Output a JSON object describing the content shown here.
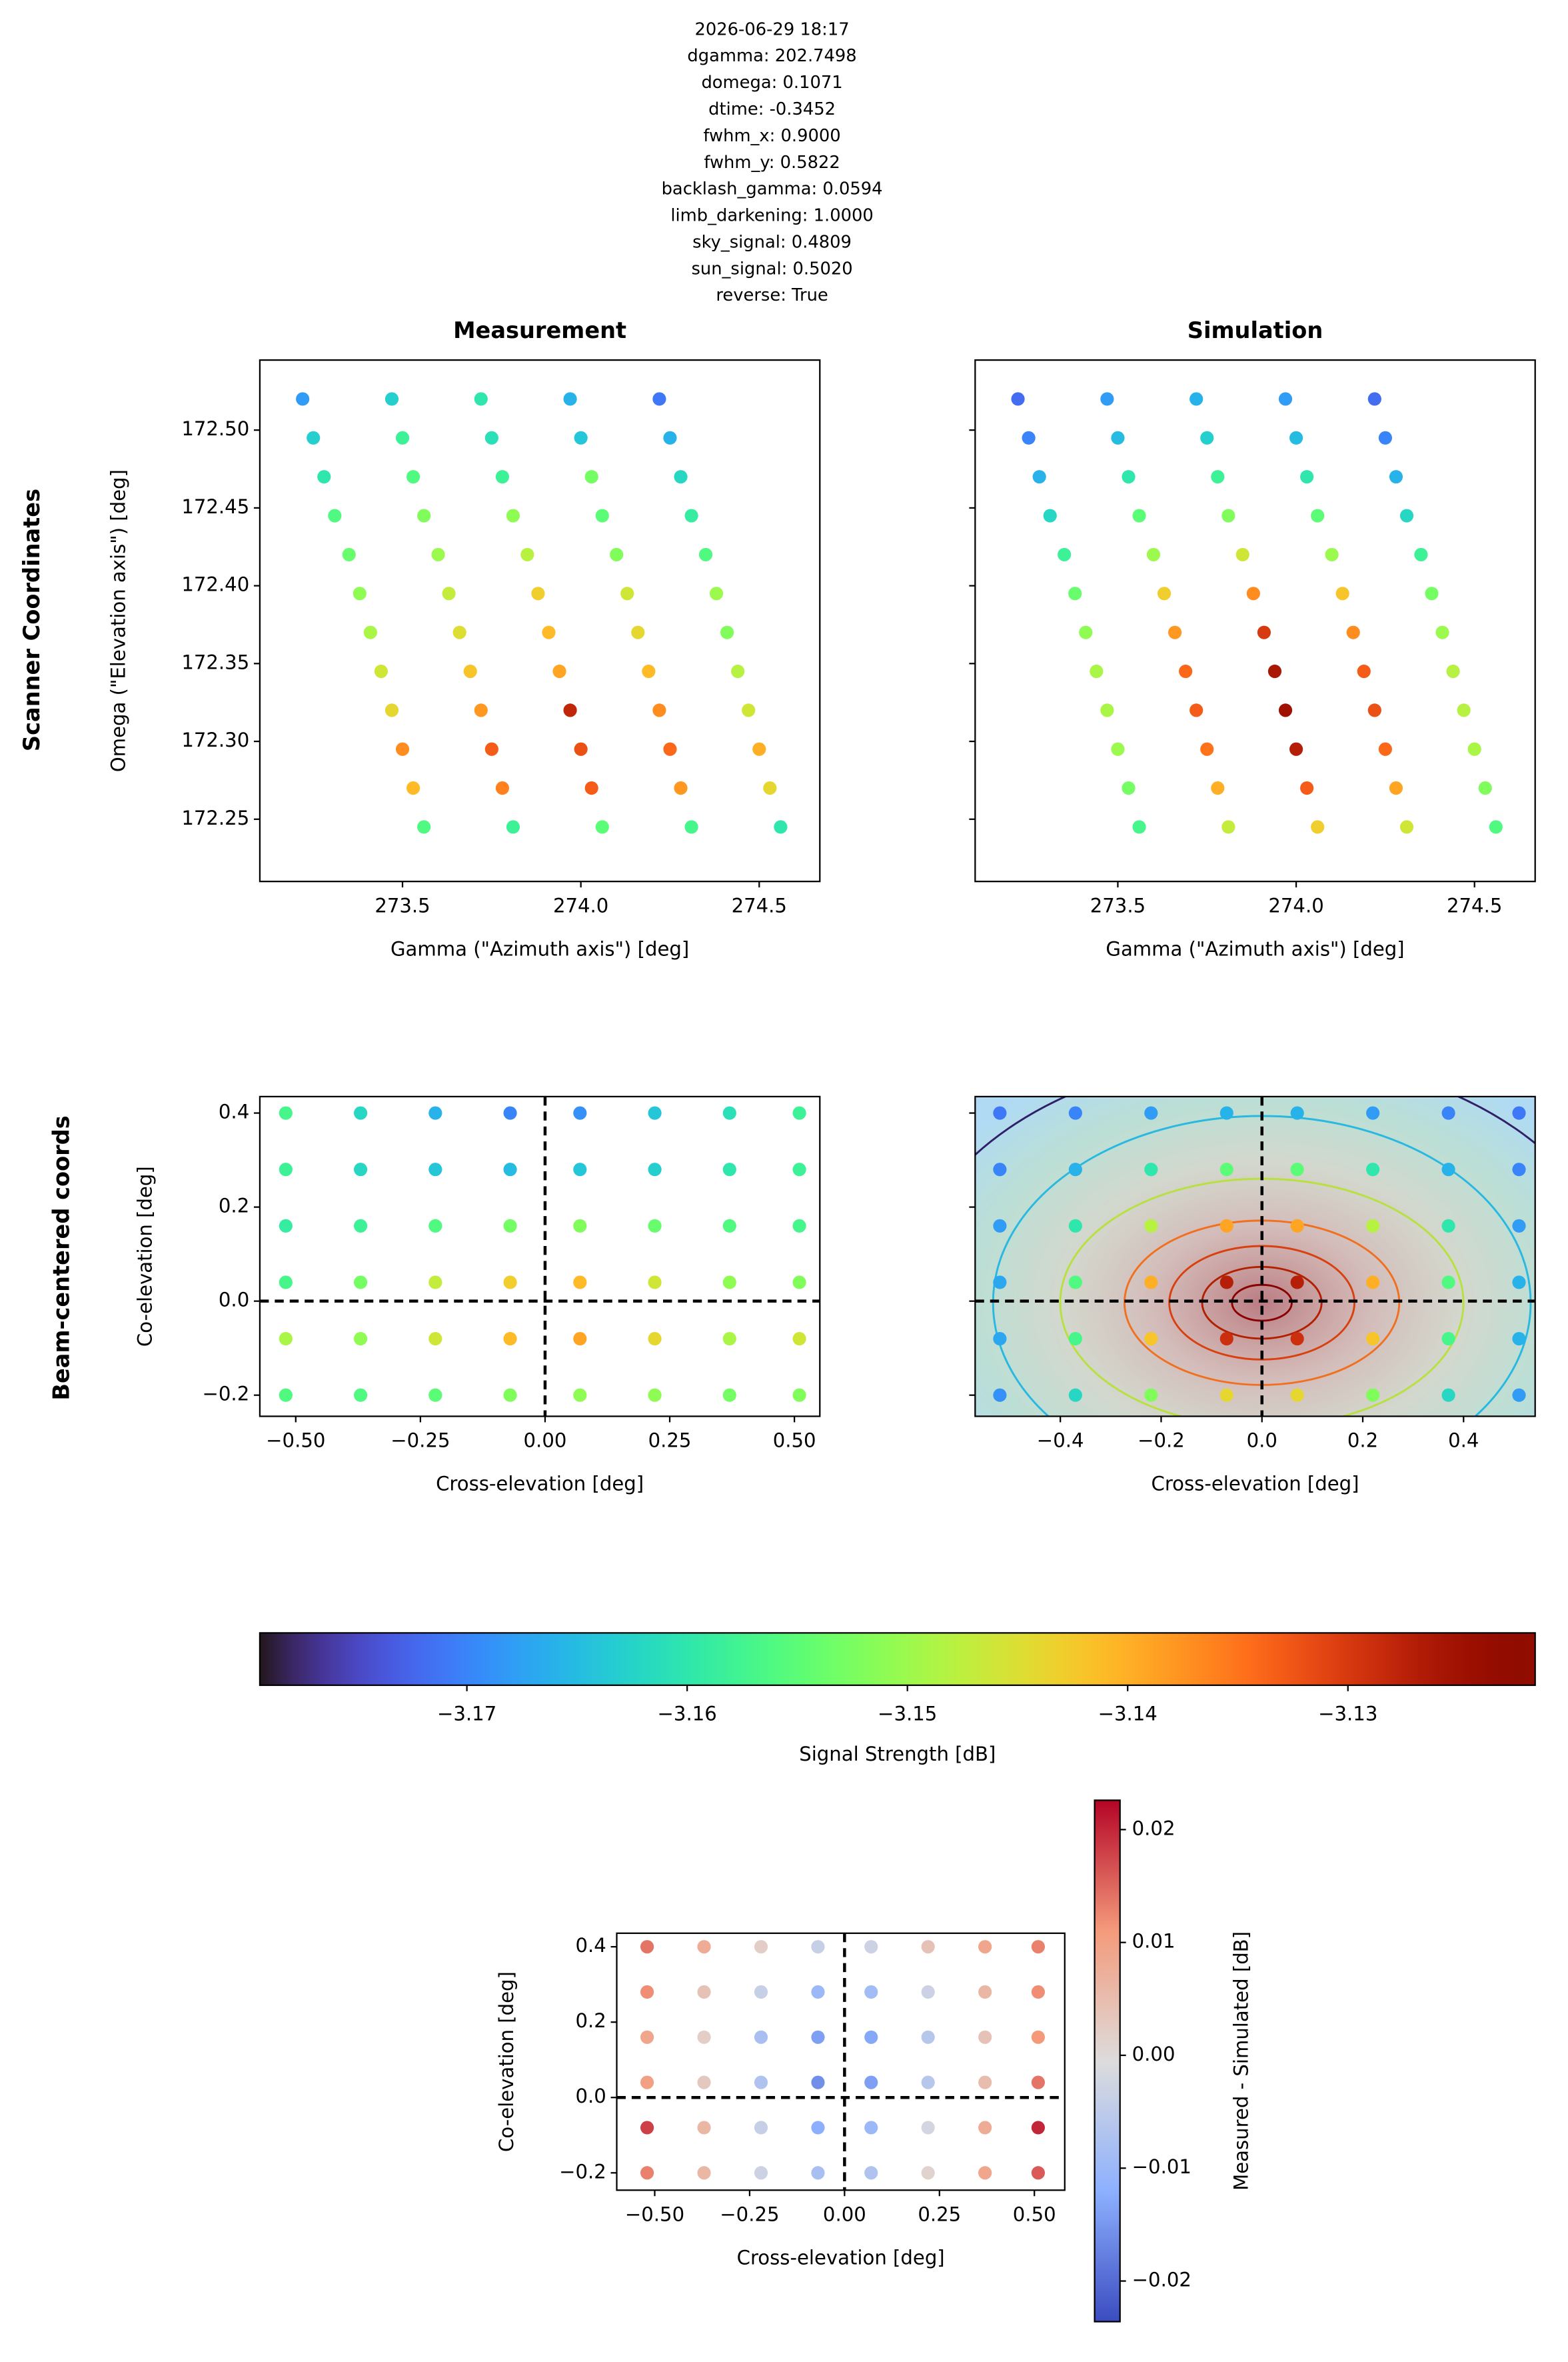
{
  "header_lines": [
    "2026-06-29 18:17",
    "dgamma: 202.7498",
    "domega: 0.1071",
    "dtime: -0.3452",
    "fwhm_x: 0.9000",
    "fwhm_y: 0.5822",
    "backlash_gamma: 0.0594",
    "limb_darkening: 1.0000",
    "sky_signal: 0.4809",
    "sun_signal: 0.5020",
    "reverse: True"
  ],
  "row_labels": [
    "Scanner Coordinates",
    "Beam-centered coords"
  ],
  "chart_data": [
    {
      "type": "scatter",
      "title": "Measurement",
      "xlabel": "Gamma (\"Azimuth axis\") [deg]",
      "ylabel": "Omega (\"Elevation axis\") [deg]",
      "colormap": "turbo",
      "xlim": [
        273.1,
        274.67
      ],
      "ylim": [
        172.21,
        172.545
      ],
      "xticks": [
        273.5,
        {
          "value": 274,
          "label": "274.0"
        },
        274.5
      ],
      "yticks": [
        172.25,
        {
          "value": 172.3,
          "label": "172.30"
        },
        172.35,
        {
          "value": 172.4,
          "label": "172.40"
        },
        172.45,
        {
          "value": 172.5,
          "label": "172.50"
        }
      ],
      "x": [
        273.22,
        273.47,
        273.72,
        273.97,
        274.22,
        273.25,
        273.5,
        273.75,
        274.0,
        274.25,
        273.28,
        273.53,
        273.78,
        274.03,
        274.28,
        273.31,
        273.56,
        273.81,
        274.06,
        274.31,
        273.35,
        273.6,
        273.85,
        274.1,
        274.35,
        273.38,
        273.63,
        273.88,
        274.13,
        274.38,
        273.41,
        273.66,
        273.91,
        274.16,
        274.41,
        273.44,
        273.69,
        273.94,
        274.19,
        274.44,
        273.47,
        273.72,
        273.97,
        274.22,
        274.47,
        273.5,
        273.75,
        274.0,
        274.25,
        274.5,
        273.53,
        273.78,
        274.03,
        274.28,
        274.53,
        273.56,
        273.81,
        274.06,
        274.31,
        274.56
      ],
      "y": [
        172.52,
        172.52,
        172.52,
        172.52,
        172.52,
        172.495,
        172.495,
        172.495,
        172.495,
        172.495,
        172.47,
        172.47,
        172.47,
        172.47,
        172.47,
        172.445,
        172.445,
        172.445,
        172.445,
        172.445,
        172.42,
        172.42,
        172.42,
        172.42,
        172.42,
        172.395,
        172.395,
        172.395,
        172.395,
        172.395,
        172.37,
        172.37,
        172.37,
        172.37,
        172.37,
        172.345,
        172.345,
        172.345,
        172.345,
        172.345,
        172.32,
        172.32,
        172.32,
        172.32,
        172.32,
        172.295,
        172.295,
        172.295,
        172.295,
        172.295,
        172.27,
        172.27,
        172.27,
        172.27,
        172.27,
        172.245,
        172.245,
        172.245,
        172.245,
        172.245
      ],
      "values": [
        -3.168,
        -3.163,
        -3.16,
        -3.166,
        -3.171,
        -3.163,
        -3.158,
        -3.161,
        -3.164,
        -3.166,
        -3.16,
        -3.156,
        -3.158,
        -3.153,
        -3.162,
        -3.156,
        -3.152,
        -3.151,
        -3.155,
        -3.159,
        -3.154,
        -3.15,
        -3.148,
        -3.152,
        -3.156,
        -3.151,
        -3.147,
        -3.143,
        -3.146,
        -3.15,
        -3.149,
        -3.145,
        -3.141,
        -3.144,
        -3.152,
        -3.146,
        -3.142,
        -3.139,
        -3.141,
        -3.148,
        -3.144,
        -3.138,
        -3.128,
        -3.137,
        -3.146,
        -3.137,
        -3.133,
        -3.132,
        -3.134,
        -3.14,
        -3.141,
        -3.136,
        -3.133,
        -3.138,
        -3.144,
        -3.156,
        -3.158,
        -3.155,
        -3.157,
        -3.16
      ]
    },
    {
      "type": "scatter",
      "title": "Simulation",
      "xlabel": "Gamma (\"Azimuth axis\") [deg]",
      "colormap": "turbo",
      "ytick_labels": false,
      "xlim": [
        273.1,
        274.67
      ],
      "ylim": [
        172.21,
        172.545
      ],
      "xticks": [
        273.5,
        {
          "value": 274,
          "label": "274.0"
        },
        274.5
      ],
      "yticks": [
        172.25,
        172.3,
        172.35,
        172.4,
        172.45,
        172.5
      ],
      "x": [
        273.22,
        273.47,
        273.72,
        273.97,
        274.22,
        273.25,
        273.5,
        273.75,
        274.0,
        274.25,
        273.28,
        273.53,
        273.78,
        274.03,
        274.28,
        273.31,
        273.56,
        273.81,
        274.06,
        274.31,
        273.35,
        273.6,
        273.85,
        274.1,
        274.35,
        273.38,
        273.63,
        273.88,
        274.13,
        274.38,
        273.41,
        273.66,
        273.91,
        274.16,
        274.41,
        273.44,
        273.69,
        273.94,
        274.19,
        274.44,
        273.47,
        273.72,
        273.97,
        274.22,
        274.47,
        273.5,
        273.75,
        274.0,
        274.25,
        274.5,
        273.53,
        273.78,
        274.03,
        274.28,
        274.53,
        273.56,
        273.81,
        274.06,
        274.31,
        274.56
      ],
      "y": [
        172.52,
        172.52,
        172.52,
        172.52,
        172.52,
        172.495,
        172.495,
        172.495,
        172.495,
        172.495,
        172.47,
        172.47,
        172.47,
        172.47,
        172.47,
        172.445,
        172.445,
        172.445,
        172.445,
        172.445,
        172.42,
        172.42,
        172.42,
        172.42,
        172.42,
        172.395,
        172.395,
        172.395,
        172.395,
        172.395,
        172.37,
        172.37,
        172.37,
        172.37,
        172.37,
        172.345,
        172.345,
        172.345,
        172.345,
        172.345,
        172.32,
        172.32,
        172.32,
        172.32,
        172.32,
        172.295,
        172.295,
        172.295,
        172.295,
        172.295,
        172.27,
        172.27,
        172.27,
        172.27,
        172.27,
        172.245,
        172.245,
        172.245,
        172.245,
        172.245
      ],
      "values": [
        -3.172,
        -3.168,
        -3.166,
        -3.168,
        -3.172,
        -3.17,
        -3.165,
        -3.163,
        -3.165,
        -3.17,
        -3.166,
        -3.16,
        -3.158,
        -3.16,
        -3.166,
        -3.162,
        -3.155,
        -3.152,
        -3.155,
        -3.162,
        -3.158,
        -3.15,
        -3.146,
        -3.15,
        -3.158,
        -3.154,
        -3.143,
        -3.137,
        -3.142,
        -3.153,
        -3.151,
        -3.138,
        -3.13,
        -3.137,
        -3.15,
        -3.149,
        -3.134,
        -3.126,
        -3.133,
        -3.148,
        -3.149,
        -3.133,
        -3.125,
        -3.132,
        -3.148,
        -3.15,
        -3.135,
        -3.127,
        -3.134,
        -3.149,
        -3.153,
        -3.14,
        -3.133,
        -3.139,
        -3.152,
        -3.157,
        -3.147,
        -3.143,
        -3.146,
        -3.156
      ]
    },
    {
      "type": "scatter",
      "xlabel": "Cross-elevation [deg]",
      "ylabel": "Co-elevation [deg]",
      "colormap": "turbo",
      "reference_lines": {
        "x": 0,
        "y": 0
      },
      "xlim": [
        -0.572,
        0.551
      ],
      "ylim": [
        -0.245,
        0.435
      ],
      "xticks": [
        {
          "value": -0.5,
          "label": "−0.50"
        },
        {
          "value": -0.25,
          "label": "−0.25"
        },
        {
          "value": 0,
          "label": "0.00"
        },
        0.25,
        {
          "value": 0.5,
          "label": "0.50"
        }
      ],
      "yticks": [
        {
          "value": -0.2,
          "label": "−0.2"
        },
        {
          "value": 0,
          "label": "0.0"
        },
        0.2,
        0.4
      ],
      "x": [
        -0.52,
        -0.37,
        -0.22,
        -0.07,
        0.07,
        0.22,
        0.37,
        0.51,
        -0.52,
        -0.37,
        -0.22,
        -0.07,
        0.07,
        0.22,
        0.37,
        0.51,
        -0.52,
        -0.37,
        -0.22,
        -0.07,
        0.07,
        0.22,
        0.37,
        0.51,
        -0.52,
        -0.37,
        -0.22,
        -0.07,
        0.07,
        0.22,
        0.37,
        0.51,
        -0.52,
        -0.37,
        -0.22,
        -0.07,
        0.07,
        0.22,
        0.37,
        0.51,
        -0.52,
        -0.37,
        -0.22,
        -0.07,
        0.07,
        0.22,
        0.37,
        0.51
      ],
      "y": [
        0.4,
        0.4,
        0.4,
        0.4,
        0.4,
        0.4,
        0.4,
        0.4,
        0.28,
        0.28,
        0.28,
        0.28,
        0.28,
        0.28,
        0.28,
        0.28,
        0.16,
        0.16,
        0.16,
        0.16,
        0.16,
        0.16,
        0.16,
        0.16,
        0.04,
        0.04,
        0.04,
        0.04,
        0.04,
        0.04,
        0.04,
        0.04,
        -0.08,
        -0.08,
        -0.08,
        -0.08,
        -0.08,
        -0.08,
        -0.08,
        -0.08,
        -0.2,
        -0.2,
        -0.2,
        -0.2,
        -0.2,
        -0.2,
        -0.2,
        -0.2
      ],
      "values": [
        -3.157,
        -3.162,
        -3.166,
        -3.17,
        -3.169,
        -3.164,
        -3.161,
        -3.158,
        -3.158,
        -3.162,
        -3.164,
        -3.165,
        -3.164,
        -3.163,
        -3.16,
        -3.158,
        -3.159,
        -3.158,
        -3.156,
        -3.153,
        -3.152,
        -3.154,
        -3.156,
        -3.157,
        -3.157,
        -3.153,
        -3.147,
        -3.143,
        -3.141,
        -3.146,
        -3.151,
        -3.152,
        -3.149,
        -3.151,
        -3.146,
        -3.141,
        -3.139,
        -3.144,
        -3.149,
        -3.146,
        -3.156,
        -3.156,
        -3.155,
        -3.152,
        -3.151,
        -3.151,
        -3.153,
        -3.152
      ]
    },
    {
      "type": "scatter",
      "xlabel": "Cross-elevation [deg]",
      "colormap": "turbo",
      "ytick_labels": false,
      "reference_lines": {
        "x": 0,
        "y": 0
      },
      "xlim": [
        -0.569,
        0.542
      ],
      "ylim": [
        -0.245,
        0.435
      ],
      "xticks": [
        {
          "value": -0.4,
          "label": "−0.4"
        },
        {
          "value": -0.2,
          "label": "−0.2"
        },
        {
          "value": 0,
          "label": "0.0"
        },
        0.2,
        0.4
      ],
      "yticks": [
        -0.2,
        0,
        0.2,
        0.4
      ],
      "x": [
        -0.52,
        -0.37,
        -0.22,
        -0.07,
        0.07,
        0.22,
        0.37,
        0.51,
        -0.52,
        -0.37,
        -0.22,
        -0.07,
        0.07,
        0.22,
        0.37,
        0.51,
        -0.52,
        -0.37,
        -0.22,
        -0.07,
        0.07,
        0.22,
        0.37,
        0.51,
        -0.52,
        -0.37,
        -0.22,
        -0.07,
        0.07,
        0.22,
        0.37,
        0.51,
        -0.52,
        -0.37,
        -0.22,
        -0.07,
        0.07,
        0.22,
        0.37,
        0.51,
        -0.52,
        -0.37,
        -0.22,
        -0.07,
        0.07,
        0.22,
        0.37,
        0.51
      ],
      "y": [
        0.4,
        0.4,
        0.4,
        0.4,
        0.4,
        0.4,
        0.4,
        0.4,
        0.28,
        0.28,
        0.28,
        0.28,
        0.28,
        0.28,
        0.28,
        0.28,
        0.16,
        0.16,
        0.16,
        0.16,
        0.16,
        0.16,
        0.16,
        0.16,
        0.04,
        0.04,
        0.04,
        0.04,
        0.04,
        0.04,
        0.04,
        0.04,
        -0.08,
        -0.08,
        -0.08,
        -0.08,
        -0.08,
        -0.08,
        -0.08,
        -0.08,
        -0.2,
        -0.2,
        -0.2,
        -0.2,
        -0.2,
        -0.2,
        -0.2,
        -0.2
      ],
      "values": [
        -3.171,
        -3.17,
        -3.168,
        -3.166,
        -3.166,
        -3.168,
        -3.17,
        -3.171,
        -3.17,
        -3.166,
        -3.16,
        -3.155,
        -3.155,
        -3.16,
        -3.166,
        -3.17,
        -3.168,
        -3.16,
        -3.148,
        -3.139,
        -3.139,
        -3.148,
        -3.16,
        -3.168,
        -3.167,
        -3.156,
        -3.14,
        -3.127,
        -3.127,
        -3.14,
        -3.156,
        -3.166,
        -3.167,
        -3.157,
        -3.142,
        -3.129,
        -3.129,
        -3.142,
        -3.157,
        -3.166,
        -3.169,
        -3.162,
        -3.152,
        -3.144,
        -3.144,
        -3.152,
        -3.162,
        -3.168
      ]
    },
    {
      "type": "colorbar",
      "orientation": "horizontal",
      "label": "Signal Strength [dB]",
      "colormap": "turbo",
      "lim": [
        -3.1794,
        -3.1215
      ],
      "ticks": [
        {
          "value": -3.17,
          "label": "−3.17"
        },
        {
          "value": -3.16,
          "label": "−3.16"
        },
        {
          "value": -3.15,
          "label": "−3.15"
        },
        {
          "value": -3.14,
          "label": "−3.14"
        },
        {
          "value": -3.13,
          "label": "−3.13"
        }
      ]
    },
    {
      "type": "scatter",
      "xlabel": "Cross-elevation [deg]",
      "ylabel": "Co-elevation [deg]",
      "colormap": "coolwarm",
      "reference_lines": {
        "x": 0,
        "y": 0
      },
      "xlim": [
        -0.6,
        0.58
      ],
      "ylim": [
        -0.246,
        0.436
      ],
      "xticks": [
        {
          "value": -0.5,
          "label": "−0.50"
        },
        {
          "value": -0.25,
          "label": "−0.25"
        },
        {
          "value": 0,
          "label": "0.00"
        },
        0.25,
        {
          "value": 0.5,
          "label": "0.50"
        }
      ],
      "yticks": [
        {
          "value": -0.2,
          "label": "−0.2"
        },
        {
          "value": 0,
          "label": "0.0"
        },
        0.2,
        0.4
      ],
      "x": [
        -0.52,
        -0.37,
        -0.22,
        -0.07,
        0.07,
        0.22,
        0.37,
        0.51,
        -0.52,
        -0.37,
        -0.22,
        -0.07,
        0.07,
        0.22,
        0.37,
        0.51,
        -0.52,
        -0.37,
        -0.22,
        -0.07,
        0.07,
        0.22,
        0.37,
        0.51,
        -0.52,
        -0.37,
        -0.22,
        -0.07,
        0.07,
        0.22,
        0.37,
        0.51,
        -0.52,
        -0.37,
        -0.22,
        -0.07,
        0.07,
        0.22,
        0.37,
        0.51,
        -0.52,
        -0.37,
        -0.22,
        -0.07,
        0.07,
        0.22,
        0.37,
        0.51
      ],
      "y": [
        0.4,
        0.4,
        0.4,
        0.4,
        0.4,
        0.4,
        0.4,
        0.4,
        0.28,
        0.28,
        0.28,
        0.28,
        0.28,
        0.28,
        0.28,
        0.28,
        0.16,
        0.16,
        0.16,
        0.16,
        0.16,
        0.16,
        0.16,
        0.16,
        0.04,
        0.04,
        0.04,
        0.04,
        0.04,
        0.04,
        0.04,
        0.04,
        -0.08,
        -0.08,
        -0.08,
        -0.08,
        -0.08,
        -0.08,
        -0.08,
        -0.08,
        -0.2,
        -0.2,
        -0.2,
        -0.2,
        -0.2,
        -0.2,
        -0.2,
        -0.2
      ],
      "values": [
        0.014,
        0.008,
        0.002,
        -0.004,
        -0.003,
        0.004,
        0.009,
        0.013,
        0.012,
        0.004,
        -0.004,
        -0.01,
        -0.009,
        -0.003,
        0.006,
        0.012,
        0.009,
        0.002,
        -0.008,
        -0.014,
        -0.013,
        -0.006,
        0.004,
        0.011,
        0.01,
        0.003,
        -0.007,
        -0.016,
        -0.014,
        -0.006,
        0.005,
        0.014,
        0.018,
        0.006,
        -0.004,
        -0.012,
        -0.01,
        -0.002,
        0.008,
        0.02,
        0.013,
        0.006,
        -0.003,
        -0.008,
        -0.007,
        0.001,
        0.009,
        0.016
      ]
    },
    {
      "type": "colorbar",
      "orientation": "vertical",
      "label": "Measured - Simulated [dB]",
      "colormap": "coolwarm",
      "lim": [
        -0.0236,
        0.0226
      ],
      "ticks": [
        {
          "value": -0.02,
          "label": "−0.02"
        },
        {
          "value": -0.01,
          "label": "−0.01"
        },
        {
          "value": 0,
          "label": "0.00"
        },
        0.01,
        0.02
      ]
    }
  ]
}
